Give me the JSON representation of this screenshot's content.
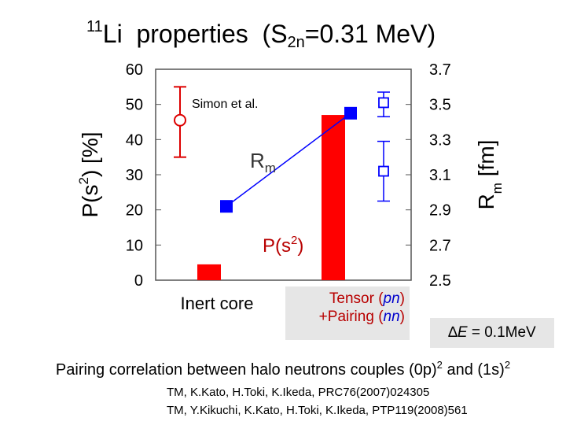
{
  "title": {
    "mass_number": "11",
    "element": "Li",
    "text": "properties",
    "separator": "(S",
    "subscript": "2n",
    "value_text": "=0.31 MeV)"
  },
  "chart_data": {
    "type": "bar+line",
    "title": "11Li properties (S2n=0.31 MeV)",
    "categories": [
      "Inert core",
      "Tensor (pn) +Pairing (nn)"
    ],
    "left_axis": {
      "label": "P(s2) [%]",
      "ylim": [
        0,
        60
      ],
      "ticks": [
        "0",
        "10",
        "20",
        "30",
        "40",
        "50",
        "60"
      ]
    },
    "right_axis": {
      "label": "Rm [fm]",
      "ylim": [
        2.5,
        3.7
      ],
      "ticks": [
        "2.5",
        "2.7",
        "2.9",
        "3.1",
        "3.3",
        "3.5",
        "3.7"
      ]
    },
    "bars": {
      "name": "P(s2)",
      "color": "#ff0000",
      "values": [
        4.5,
        47.0
      ]
    },
    "rm_line": {
      "name": "Rm",
      "color": "#0000ff",
      "values": [
        2.92,
        3.45
      ]
    },
    "experiment_p": {
      "label": "Simon et al.",
      "value": 45.5,
      "err_low": 35.0,
      "err_high": 55.0,
      "color": "#dd0000"
    },
    "experiment_rm": [
      {
        "value": 3.51,
        "err_low": 3.43,
        "err_high": 3.57
      },
      {
        "value": 3.12,
        "err_low": 2.95,
        "err_high": 3.29
      }
    ],
    "annotations": {
      "rm_label": "Rm",
      "p_label_main": "P(s",
      "p_label_sup": "2",
      "p_label_end": ")"
    }
  },
  "axis_labels": {
    "left_main": "P(s",
    "left_sup": "2",
    "left_end": ") [%]",
    "right_main": "R",
    "right_sub": "m",
    "right_end": " [fm]"
  },
  "category_labels": {
    "inert": "Inert core",
    "tensor_word": "Tensor",
    "pn": "pn",
    "pairing_word": "+Pairing",
    "nn": "nn"
  },
  "energy": {
    "delta": "∆",
    "symbol": "E",
    "value": " = 0.1MeV"
  },
  "pairing": {
    "text": "Pairing correlation between halo neutrons couples (0p)",
    "sup1": "2",
    "middle": " and (1s)",
    "sup2": "2"
  },
  "references": [
    "TM, K.Kato, H.Toki, K.Ikeda,  PRC76(2007)024305",
    "TM, Y.Kikuchi, K.Kato, H.Toki, K.Ikeda,   PTP119(2008)561"
  ],
  "colors": {
    "bar": "#ff0000",
    "rm": "#0000ff",
    "tensor_text": "#b80000",
    "nn_text": "#0000cc",
    "label_box": "#e6e6e6"
  }
}
